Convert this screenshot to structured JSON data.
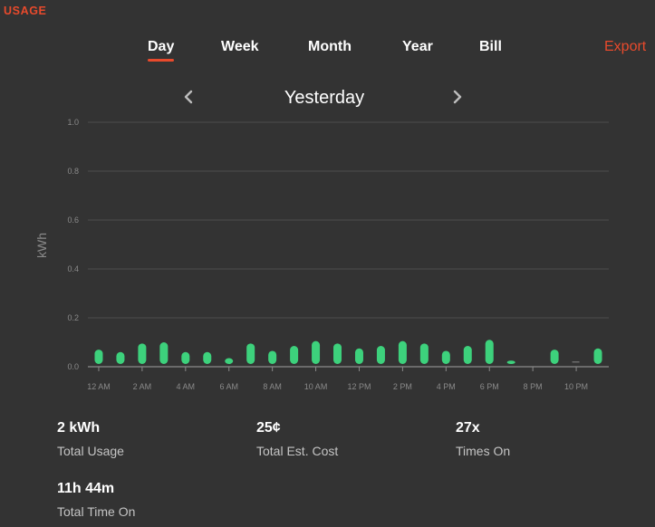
{
  "header": {
    "section_title": "USAGE"
  },
  "tabs": [
    {
      "label": "Day",
      "active": true
    },
    {
      "label": "Week",
      "active": false
    },
    {
      "label": "Month",
      "active": false
    },
    {
      "label": "Year",
      "active": false
    },
    {
      "label": "Bill",
      "active": false
    }
  ],
  "export_label": "Export",
  "period": {
    "label": "Yesterday",
    "prev_icon": "chevron-left-icon",
    "next_icon": "chevron-right-icon"
  },
  "colors": {
    "accent": "#e84a2c",
    "bar": "#3dd17c",
    "background": "#333333"
  },
  "chart_data": {
    "type": "bar",
    "ylabel": "kWh",
    "ylim": [
      0,
      1.0
    ],
    "yticks": [
      "0.0",
      "0.2",
      "0.4",
      "0.6",
      "0.8",
      "1.0"
    ],
    "grid": true,
    "categories": [
      "12 AM",
      "1 AM",
      "2 AM",
      "3 AM",
      "4 AM",
      "5 AM",
      "6 AM",
      "7 AM",
      "8 AM",
      "9 AM",
      "10 AM",
      "11 AM",
      "12 PM",
      "1 PM",
      "2 PM",
      "3 PM",
      "4 PM",
      "5 PM",
      "6 PM",
      "7 PM",
      "8 PM",
      "9 PM",
      "10 PM",
      "11 PM"
    ],
    "xtick_labels": [
      "12 AM",
      "2 AM",
      "4 AM",
      "6 AM",
      "8 AM",
      "10 AM",
      "12 PM",
      "2 PM",
      "4 PM",
      "6 PM",
      "8 PM",
      "10 PM"
    ],
    "values": [
      0.07,
      0.06,
      0.095,
      0.1,
      0.06,
      0.06,
      0.035,
      0.095,
      0.065,
      0.085,
      0.105,
      0.095,
      0.075,
      0.085,
      0.105,
      0.095,
      0.065,
      0.085,
      0.11,
      0.025,
      0.0,
      0.07,
      0.005,
      0.075
    ]
  },
  "stats": [
    {
      "value": "2 kWh",
      "label": "Total Usage"
    },
    {
      "value": "25¢",
      "label": "Total Est. Cost"
    },
    {
      "value": "27x",
      "label": "Times On"
    },
    {
      "value": "11h 44m",
      "label": "Total Time On"
    }
  ]
}
